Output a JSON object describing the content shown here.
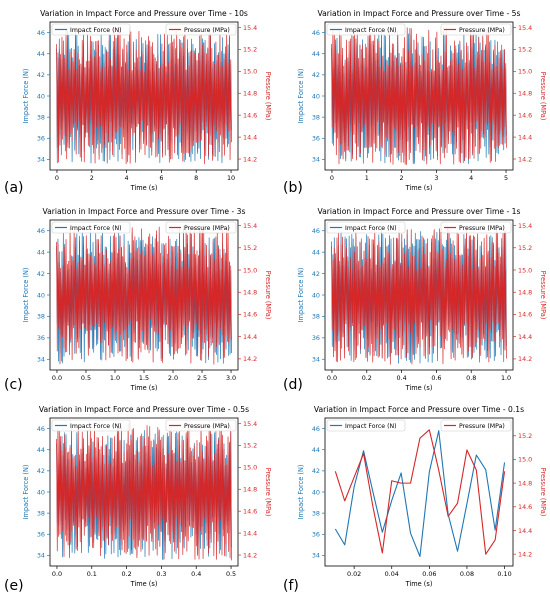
{
  "colors": {
    "force": "#1f77b4",
    "pressure": "#d62728"
  },
  "chart_data": [
    {
      "type": "line",
      "label": "(a)",
      "title": "Variation in Impact Force and Pressure over Time - 10s",
      "xlabel": "Time (s)",
      "ylabel_left": "Impact Force (N)",
      "ylabel_right": "Pressure (MPa)",
      "xlim": [
        -0.4,
        10.4
      ],
      "ylim_left": [
        33,
        47
      ],
      "ylim_right": [
        14.1,
        15.45
      ],
      "xticks": [
        0,
        2,
        4,
        6,
        8,
        10
      ],
      "yticks_left": [
        34,
        36,
        38,
        40,
        42,
        44,
        46
      ],
      "yticks_right": [
        14.2,
        14.4,
        14.6,
        14.8,
        15.0,
        15.2,
        15.4
      ],
      "legend": {
        "left": "upper-left",
        "right": "upper-right"
      },
      "dense": true,
      "series": [
        {
          "name": "Impact Force (N)",
          "axis": "left",
          "range": [
            33.6,
            46.0
          ]
        },
        {
          "name": "Pressure (MPa)",
          "axis": "right",
          "range": [
            14.15,
            15.4
          ]
        }
      ]
    },
    {
      "type": "line",
      "label": "(b)",
      "title": "Variation in Impact Force and Pressure over Time - 5s",
      "xlabel": "Time (s)",
      "ylabel_left": "Impact Force (N)",
      "ylabel_right": "Pressure (MPa)",
      "xlim": [
        -0.2,
        5.2
      ],
      "ylim_left": [
        33,
        47
      ],
      "ylim_right": [
        14.1,
        15.45
      ],
      "xticks": [
        0,
        1,
        2,
        3,
        4,
        5
      ],
      "yticks_left": [
        34,
        36,
        38,
        40,
        42,
        44,
        46
      ],
      "yticks_right": [
        14.2,
        14.4,
        14.6,
        14.8,
        15.0,
        15.2,
        15.4
      ],
      "legend": {
        "left": "upper-left",
        "right": "upper-right"
      },
      "dense": true,
      "series": [
        {
          "name": "Impact Force (N)",
          "axis": "left",
          "range": [
            33.6,
            46.0
          ]
        },
        {
          "name": "Pressure (MPa)",
          "axis": "right",
          "range": [
            14.15,
            15.4
          ]
        }
      ]
    },
    {
      "type": "line",
      "label": "(c)",
      "title": "Variation in Impact Force and Pressure over Time - 3s",
      "xlabel": "Time (s)",
      "ylabel_left": "Impact Force (N)",
      "ylabel_right": "Pressure (MPa)",
      "xlim": [
        -0.12,
        3.12
      ],
      "ylim_left": [
        33,
        47
      ],
      "ylim_right": [
        14.1,
        15.45
      ],
      "xticks": [
        0.0,
        0.5,
        1.0,
        1.5,
        2.0,
        2.5,
        3.0
      ],
      "xtick_labels": [
        "0.0",
        "0.5",
        "1.0",
        "1.5",
        "2.0",
        "2.5",
        "3.0"
      ],
      "yticks_left": [
        34,
        36,
        38,
        40,
        42,
        44,
        46
      ],
      "yticks_right": [
        14.2,
        14.4,
        14.6,
        14.8,
        15.0,
        15.2,
        15.4
      ],
      "legend": {
        "left": "upper-left",
        "right": "upper-right"
      },
      "dense": true,
      "series": [
        {
          "name": "Impact Force (N)",
          "axis": "left",
          "range": [
            33.6,
            46.0
          ]
        },
        {
          "name": "Pressure (MPa)",
          "axis": "right",
          "range": [
            14.15,
            15.4
          ]
        }
      ]
    },
    {
      "type": "line",
      "label": "(d)",
      "title": "Variation in Impact Force and Pressure over Time - 1s",
      "xlabel": "Time (s)",
      "ylabel_left": "Impact Force (N)",
      "ylabel_right": "Pressure (MPa)",
      "xlim": [
        -0.04,
        1.04
      ],
      "ylim_left": [
        33,
        47
      ],
      "ylim_right": [
        14.1,
        15.45
      ],
      "xticks": [
        0.0,
        0.2,
        0.4,
        0.6,
        0.8,
        1.0
      ],
      "xtick_labels": [
        "0.0",
        "0.2",
        "0.4",
        "0.6",
        "0.8",
        "1.0"
      ],
      "yticks_left": [
        34,
        36,
        38,
        40,
        42,
        44,
        46
      ],
      "yticks_right": [
        14.2,
        14.4,
        14.6,
        14.8,
        15.0,
        15.2,
        15.4
      ],
      "legend": {
        "left": "upper-left",
        "right": "upper-right"
      },
      "dense": true,
      "series": [
        {
          "name": "Impact Force (N)",
          "axis": "left",
          "range": [
            33.6,
            46.0
          ]
        },
        {
          "name": "Pressure (MPa)",
          "axis": "right",
          "range": [
            14.15,
            15.4
          ]
        }
      ]
    },
    {
      "type": "line",
      "label": "(e)",
      "title": "Variation in Impact Force and Pressure over Time - 0.5s",
      "xlabel": "Time (s)",
      "ylabel_left": "Impact Force (N)",
      "ylabel_right": "Pressure (MPa)",
      "xlim": [
        -0.02,
        0.52
      ],
      "ylim_left": [
        33,
        47
      ],
      "ylim_right": [
        14.1,
        15.45
      ],
      "xticks": [
        0.0,
        0.1,
        0.2,
        0.3,
        0.4,
        0.5
      ],
      "xtick_labels": [
        "0.0",
        "0.1",
        "0.2",
        "0.3",
        "0.4",
        "0.5"
      ],
      "yticks_left": [
        34,
        36,
        38,
        40,
        42,
        44,
        46
      ],
      "yticks_right": [
        14.2,
        14.4,
        14.6,
        14.8,
        15.0,
        15.2,
        15.4
      ],
      "legend": {
        "left": "upper-left",
        "right": "upper-right"
      },
      "dense": true,
      "series": [
        {
          "name": "Impact Force (N)",
          "axis": "left",
          "range": [
            33.6,
            46.0
          ]
        },
        {
          "name": "Pressure (MPa)",
          "axis": "right",
          "range": [
            14.15,
            15.4
          ]
        }
      ]
    },
    {
      "type": "line",
      "label": "(f)",
      "title": "Variation in Impact Force and Pressure over Time - 0.1s",
      "xlabel": "Time (s)",
      "ylabel_left": "Impact Force (N)",
      "ylabel_right": "Pressure (MPa)",
      "xlim": [
        0.0045,
        0.1045
      ],
      "ylim_left": [
        33,
        47
      ],
      "ylim_right": [
        14.1,
        15.35
      ],
      "xticks": [
        0.02,
        0.04,
        0.06,
        0.08,
        0.1
      ],
      "xtick_labels": [
        "0.02",
        "0.04",
        "0.06",
        "0.08",
        "0.10"
      ],
      "yticks_left": [
        34,
        36,
        38,
        40,
        42,
        44,
        46
      ],
      "yticks_right": [
        14.2,
        14.4,
        14.6,
        14.8,
        15.0,
        15.2
      ],
      "legend": {
        "left": "upper-left",
        "right": "upper-right"
      },
      "dense": false,
      "series": [
        {
          "name": "Impact Force (N)",
          "axis": "left",
          "x": [
            0.01,
            0.015,
            0.02,
            0.025,
            0.03,
            0.035,
            0.04,
            0.045,
            0.05,
            0.055,
            0.06,
            0.065,
            0.07,
            0.075,
            0.08,
            0.085,
            0.09,
            0.095,
            0.1
          ],
          "values": [
            36.5,
            35.0,
            40.5,
            43.9,
            40.0,
            36.2,
            39.2,
            41.8,
            36.1,
            33.9,
            41.9,
            45.8,
            37.9,
            34.4,
            38.9,
            43.5,
            42.1,
            36.4,
            42.8
          ]
        },
        {
          "name": "Pressure (MPa)",
          "axis": "right",
          "x": [
            0.01,
            0.015,
            0.02,
            0.025,
            0.03,
            0.035,
            0.04,
            0.045,
            0.05,
            0.055,
            0.06,
            0.065,
            0.07,
            0.075,
            0.08,
            0.085,
            0.09,
            0.095,
            0.1
          ],
          "values": [
            14.9,
            14.65,
            14.85,
            15.05,
            14.6,
            14.21,
            14.82,
            14.8,
            14.8,
            15.18,
            15.25,
            14.91,
            14.52,
            14.63,
            15.08,
            14.91,
            14.2,
            14.32,
            14.9
          ]
        }
      ]
    }
  ]
}
